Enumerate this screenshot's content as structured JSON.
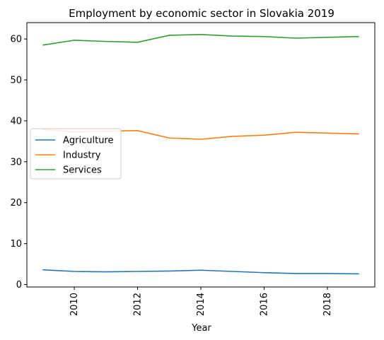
{
  "chart_data": {
    "type": "line",
    "title": "Employment by economic sector in Slovakia 2019",
    "xlabel": "Year",
    "ylabel": "",
    "xlim": [
      2008.5,
      2019.5
    ],
    "ylim": [
      -0.6,
      64
    ],
    "xticks": [
      2010,
      2012,
      2014,
      2016,
      2018
    ],
    "yticks": [
      0,
      10,
      20,
      30,
      40,
      50,
      60
    ],
    "grid": false,
    "legend_position": "center-left",
    "x": [
      2009,
      2010,
      2011,
      2012,
      2013,
      2014,
      2015,
      2016,
      2017,
      2018,
      2019
    ],
    "series": [
      {
        "name": "Agriculture",
        "color": "#1f77b4",
        "values": [
          3.6,
          3.2,
          3.1,
          3.2,
          3.3,
          3.5,
          3.2,
          2.9,
          2.7,
          2.7,
          2.6
        ]
      },
      {
        "name": "Industry",
        "color": "#ff7f0e",
        "values": [
          37.9,
          37.3,
          37.5,
          37.6,
          35.8,
          35.5,
          36.2,
          36.5,
          37.2,
          37.0,
          36.8
        ]
      },
      {
        "name": "Services",
        "color": "#2ca02c",
        "values": [
          58.5,
          59.7,
          59.4,
          59.2,
          60.9,
          61.1,
          60.7,
          60.6,
          60.2,
          60.4,
          60.6
        ]
      }
    ]
  }
}
